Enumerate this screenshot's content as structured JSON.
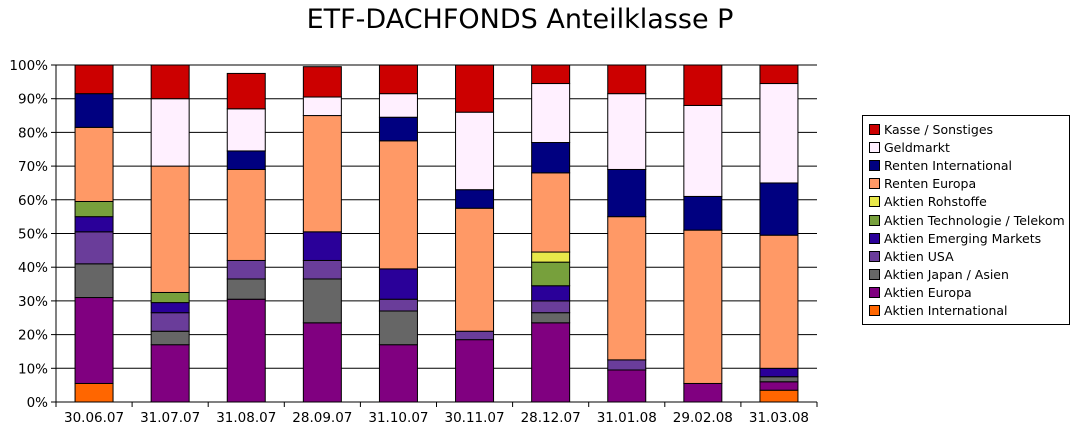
{
  "chart_data": {
    "type": "bar",
    "stacked": true,
    "title": "ETF-DACHFONDS Anteilklasse P",
    "xlabel": "",
    "ylabel": "",
    "ylim": [
      0,
      100
    ],
    "yticks": [
      "0%",
      "10%",
      "20%",
      "30%",
      "40%",
      "50%",
      "60%",
      "70%",
      "80%",
      "90%",
      "100%"
    ],
    "grid": true,
    "legend_position": "right",
    "categories": [
      "30.06.07",
      "31.07.07",
      "31.08.07",
      "28.09.07",
      "31.10.07",
      "30.11.07",
      "28.12.07",
      "31.01.08",
      "29.02.08",
      "31.03.08"
    ],
    "series": [
      {
        "name": "Aktien International",
        "color": "#ff6600",
        "values": [
          5.5,
          0,
          0,
          0,
          0,
          0,
          0,
          0,
          0,
          3.5
        ]
      },
      {
        "name": "Aktien Europa",
        "color": "#800080",
        "values": [
          25.5,
          17,
          30.5,
          23.5,
          17,
          18.5,
          23.5,
          9.5,
          5.5,
          2.5
        ]
      },
      {
        "name": "Aktien Japan / Asien",
        "color": "#666666",
        "values": [
          10,
          4,
          6,
          13,
          10,
          0,
          3,
          0,
          0,
          1.5
        ]
      },
      {
        "name": "Aktien USA",
        "color": "#6a3d9a",
        "values": [
          9.5,
          5.5,
          5.5,
          5.5,
          3.5,
          2.5,
          3.5,
          3,
          0,
          0
        ]
      },
      {
        "name": "Aktien Emerging Markets",
        "color": "#2a0099",
        "values": [
          4.5,
          3,
          0,
          8.5,
          9,
          0,
          4.5,
          0,
          0,
          2.5
        ]
      },
      {
        "name": "Aktien Technologie / Telekom",
        "color": "#77a03c",
        "values": [
          4.5,
          3,
          0,
          0,
          0,
          0,
          7,
          0,
          0,
          0
        ]
      },
      {
        "name": "Aktien Rohstoffe",
        "color": "#e8e84a",
        "values": [
          0,
          0,
          0,
          0,
          0,
          0,
          3,
          0,
          0,
          0
        ]
      },
      {
        "name": "Renten Europa",
        "color": "#ff9966",
        "values": [
          22,
          37.5,
          27,
          34.5,
          38,
          36.5,
          23.5,
          42.5,
          45.5,
          39.5
        ]
      },
      {
        "name": "Renten International",
        "color": "#000080",
        "values": [
          10,
          0,
          5.5,
          0,
          7,
          5.5,
          9,
          14,
          10,
          15.5
        ]
      },
      {
        "name": "Geldmarkt",
        "color": "#fff0ff",
        "values": [
          0,
          20,
          12.5,
          5.5,
          7,
          23,
          17.5,
          22.5,
          27,
          29.5
        ]
      },
      {
        "name": "Kasse / Sonstiges",
        "color": "#cc0000",
        "values": [
          8.5,
          10,
          10.5,
          9,
          8.5,
          14,
          5.5,
          8.5,
          12,
          5.5
        ]
      }
    ],
    "legend_order": [
      "Kasse / Sonstiges",
      "Geldmarkt",
      "Renten International",
      "Renten Europa",
      "Aktien Rohstoffe",
      "Aktien Technologie / Telekom",
      "Aktien Emerging Markets",
      "Aktien USA",
      "Aktien Japan / Asien",
      "Aktien Europa",
      "Aktien International"
    ]
  }
}
